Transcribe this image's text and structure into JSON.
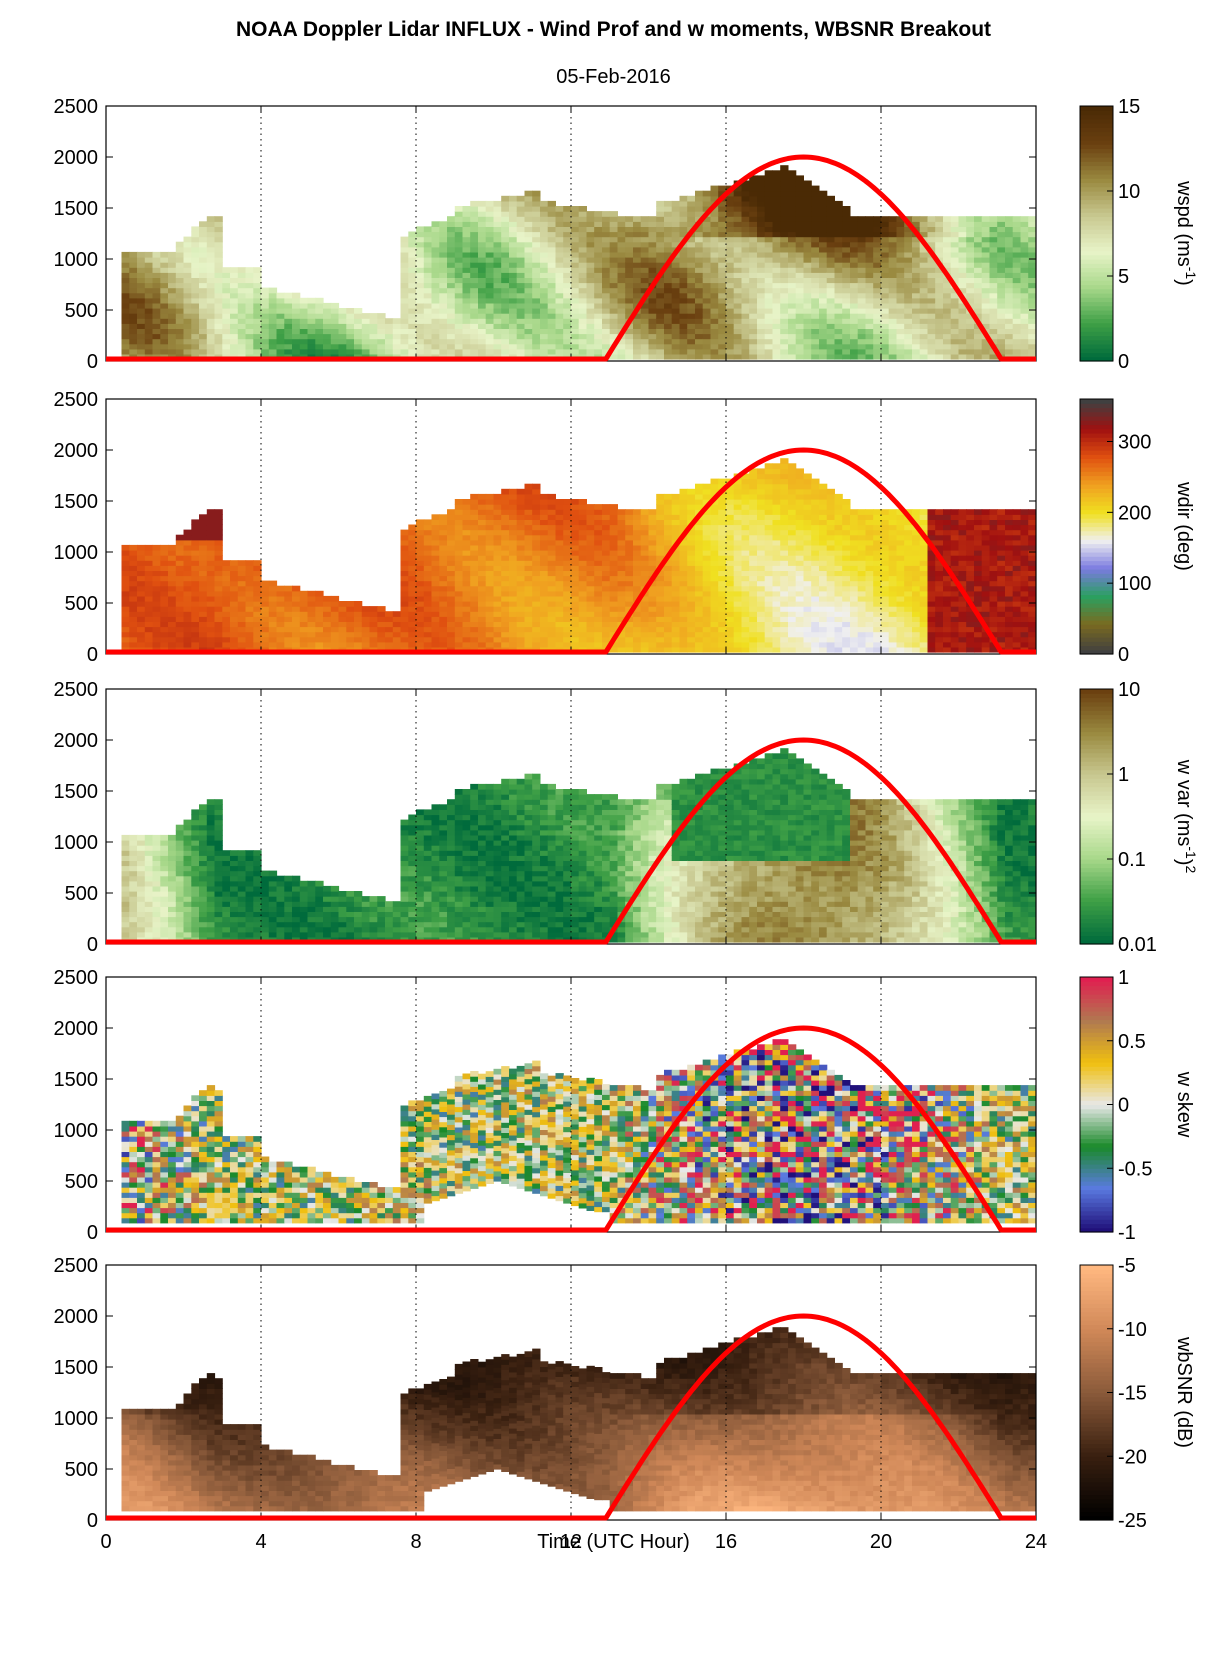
{
  "title": "NOAA Doppler Lidar INFLUX - Wind Prof and w moments, WBSNR Breakout",
  "subtitle": "05-Feb-2016",
  "xlabel": "Time (UTC Hour)",
  "colors": {
    "sun_line": "#ff0000",
    "grid": "#000000",
    "wspd_cmap": [
      "#006b3c",
      "#3fa046",
      "#a8d88a",
      "#e8f4c8",
      "#c8c890",
      "#9a8a40",
      "#6b4010",
      "#4a2a05"
    ],
    "wdir_cmap": [
      "#404040",
      "#7a6a20",
      "#2aa060",
      "#7a7ae0",
      "#f0f0f0",
      "#f0e020",
      "#f0a020",
      "#e05010",
      "#a01010",
      "#404040"
    ],
    "wvar_cmap": [
      "#006b3c",
      "#3fa046",
      "#a8d88a",
      "#e8f4c8",
      "#c8c890",
      "#9a8a40",
      "#6b4010"
    ],
    "wskew_cmap": [
      "#20107a",
      "#5a7ae0",
      "#1a8a2a",
      "#e8e8e8",
      "#f0c010",
      "#b07a50",
      "#e02050"
    ],
    "snr_cmap": [
      "#000000",
      "#3a2010",
      "#8a5a3a",
      "#d08858",
      "#ffb880"
    ]
  },
  "chart_data": [
    {
      "type": "heatmap",
      "panel": "wspd",
      "ylabel": "wspd (ms-1)",
      "ylabel_base": "wspd (ms",
      "ylabel_sup": "-1",
      "ylabel_tail": ")",
      "xlim": [
        0,
        24
      ],
      "ylim": [
        0,
        2500
      ],
      "xticks": [
        0,
        4,
        8,
        12,
        16,
        20,
        24
      ],
      "yticks": [
        0,
        500,
        1000,
        1500,
        2000,
        2500
      ],
      "colorbar": {
        "ticks": [
          "0",
          "5",
          "10",
          "15"
        ],
        "range": [
          0,
          15
        ]
      },
      "vertical_grid": [
        4,
        8,
        12,
        16,
        20
      ],
      "sun_elevation_curve": {
        "x": [
          0,
          12.9,
          18,
          23.1,
          24
        ],
        "y": [
          20,
          20,
          2000,
          20,
          20
        ]
      }
    },
    {
      "type": "heatmap",
      "panel": "wdir",
      "ylabel": "wdir (deg)",
      "xlim": [
        0,
        24
      ],
      "ylim": [
        0,
        2500
      ],
      "xticks": [
        0,
        4,
        8,
        12,
        16,
        20,
        24
      ],
      "yticks": [
        0,
        500,
        1000,
        1500,
        2000,
        2500
      ],
      "colorbar": {
        "ticks": [
          "0",
          "100",
          "200",
          "300"
        ],
        "range": [
          0,
          360
        ]
      },
      "vertical_grid": [
        4,
        8,
        12,
        16,
        20
      ],
      "sun_elevation_curve": {
        "x": [
          0,
          12.9,
          18,
          23.1,
          24
        ],
        "y": [
          20,
          20,
          2000,
          20,
          20
        ]
      }
    },
    {
      "type": "heatmap",
      "panel": "w var",
      "ylabel": "w var (ms-1)2",
      "ylabel_base": "w var (ms",
      "ylabel_sup": "-1",
      "ylabel_tail": ")",
      "ylabel_sup2": "2",
      "xlim": [
        0,
        24
      ],
      "ylim": [
        0,
        2500
      ],
      "xticks": [
        0,
        4,
        8,
        12,
        16,
        20,
        24
      ],
      "yticks": [
        0,
        500,
        1000,
        1500,
        2000,
        2500
      ],
      "colorbar": {
        "ticks": [
          "0.01",
          "0.1",
          "1",
          "10"
        ],
        "scale": "log",
        "range": [
          0.01,
          10
        ]
      },
      "vertical_grid": [
        4,
        8,
        12,
        16,
        20
      ],
      "sun_elevation_curve": {
        "x": [
          0,
          12.9,
          18,
          23.1,
          24
        ],
        "y": [
          20,
          20,
          2000,
          20,
          20
        ]
      }
    },
    {
      "type": "heatmap",
      "panel": "w skew",
      "ylabel": "w skew",
      "xlim": [
        0,
        24
      ],
      "ylim": [
        0,
        2500
      ],
      "xticks": [
        0,
        4,
        8,
        12,
        16,
        20,
        24
      ],
      "yticks": [
        0,
        500,
        1000,
        1500,
        2000,
        2500
      ],
      "colorbar": {
        "ticks": [
          "-1",
          "-0.5",
          "0",
          "0.5",
          "1"
        ],
        "range": [
          -1,
          1
        ]
      },
      "vertical_grid": [
        4,
        8,
        12,
        16,
        20
      ],
      "sun_elevation_curve": {
        "x": [
          0,
          12.9,
          18,
          23.1,
          24
        ],
        "y": [
          20,
          20,
          2000,
          20,
          20
        ]
      }
    },
    {
      "type": "heatmap",
      "panel": "wbSNR",
      "ylabel": "wbSNR (dB)",
      "xlim": [
        0,
        24
      ],
      "ylim": [
        0,
        2500
      ],
      "xticks": [
        0,
        4,
        8,
        12,
        16,
        20,
        24
      ],
      "yticks": [
        0,
        500,
        1000,
        1500,
        2000,
        2500
      ],
      "colorbar": {
        "ticks": [
          "-25",
          "-20",
          "-15",
          "-10",
          "-5"
        ],
        "range": [
          -25,
          -5
        ]
      },
      "vertical_grid": [
        4,
        8,
        12,
        16,
        20
      ],
      "sun_elevation_curve": {
        "x": [
          0,
          12.9,
          18,
          23.1,
          24
        ],
        "y": [
          20,
          20,
          2000,
          20,
          20
        ]
      }
    }
  ]
}
